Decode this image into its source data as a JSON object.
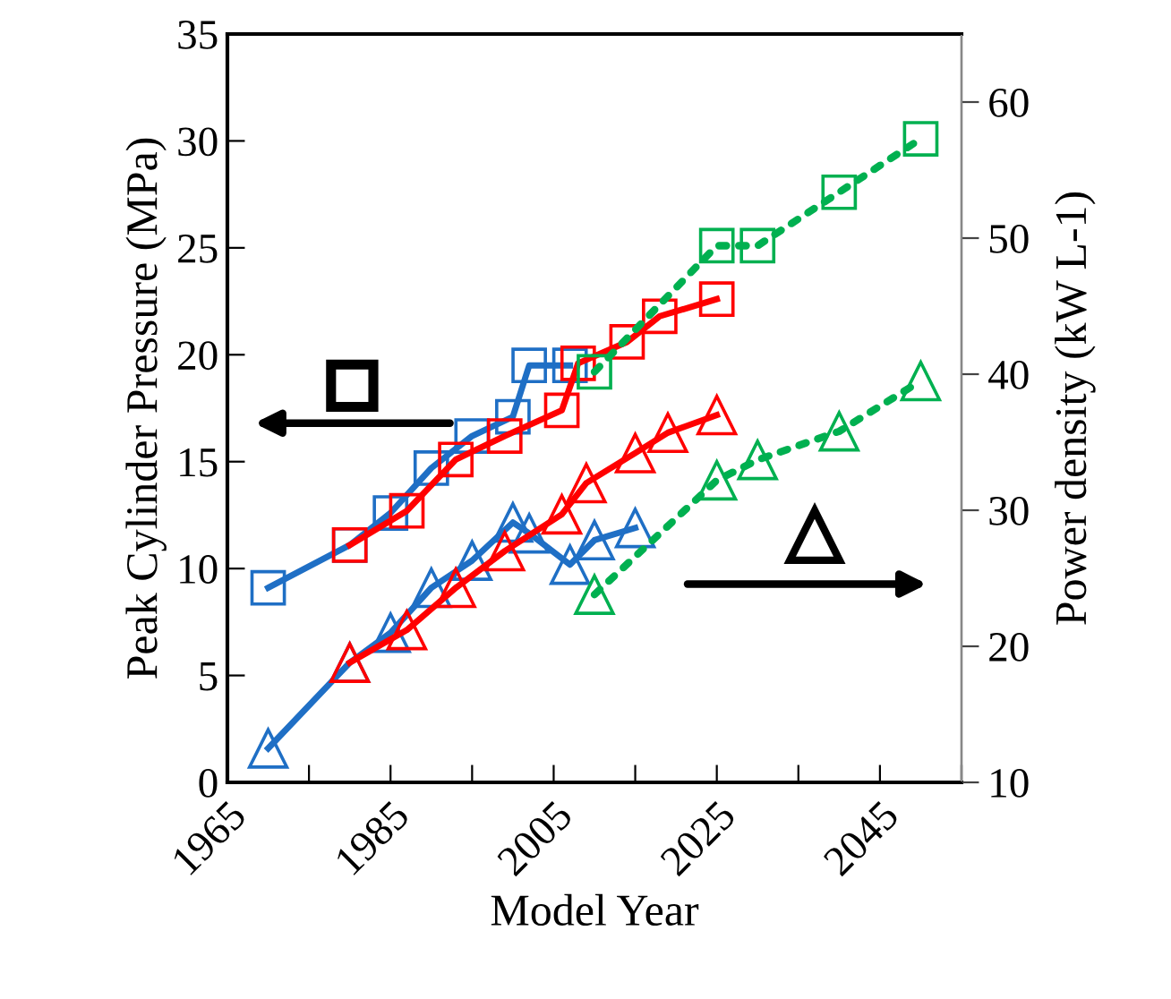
{
  "chart_data": {
    "type": "line",
    "xlabel": "Model Year",
    "ylabel": "Peak Cylinder Pressure (MPa)",
    "y2label": "Power density (kW L-1)",
    "xlim": [
      1965,
      2055
    ],
    "xticks": [
      1965,
      {
        "value": 1975,
        "label": null
      },
      1985,
      {
        "value": 1995,
        "label": null
      },
      2005,
      {
        "value": 2015,
        "label": null
      },
      2025,
      {
        "value": 2035,
        "label": null
      },
      2045,
      {
        "value": 2055,
        "label": null
      }
    ],
    "ylim": [
      0,
      35
    ],
    "yticks": [
      0,
      5,
      10,
      15,
      20,
      25,
      30,
      35
    ],
    "y2lim": [
      10,
      65
    ],
    "y2ticks": [
      10,
      20,
      30,
      40,
      50,
      60
    ],
    "grid": false,
    "series": [
      {
        "color": "#1f6fc5",
        "marker": "square",
        "line_style": "solid",
        "axis": "y",
        "x": [
          1970,
          1980,
          1985,
          1990,
          1995,
          2000,
          2002,
          2007
        ],
        "values": [
          9.1,
          11.1,
          12.6,
          14.7,
          16.2,
          17.1,
          19.5,
          19.5
        ]
      },
      {
        "color": "#ff0000",
        "marker": "square",
        "line_style": "solid",
        "axis": "y",
        "x": [
          1980,
          1987,
          1993,
          1999,
          2006,
          2008,
          2014,
          2018,
          2025
        ],
        "values": [
          11.1,
          12.7,
          15.1,
          16.2,
          17.4,
          19.6,
          20.6,
          21.8,
          22.6
        ]
      },
      {
        "color": "#00b050",
        "marker": "square",
        "line_style": "dotted",
        "axis": "y",
        "x": [
          2010,
          2025,
          2030,
          2040,
          2050
        ],
        "values": [
          19.2,
          25.1,
          25.1,
          27.6,
          30.1
        ]
      },
      {
        "color": "#1f6fc5",
        "marker": "triangle",
        "line_style": "solid",
        "axis": "y2",
        "x": [
          1970,
          1980,
          1985,
          1990,
          1995,
          2000,
          2002,
          2007,
          2010,
          2015
        ],
        "values": [
          12.5,
          18.8,
          21.0,
          24.3,
          26.3,
          29.1,
          28.3,
          26.0,
          27.8,
          28.7
        ]
      },
      {
        "color": "#ff0000",
        "marker": "triangle",
        "line_style": "solid",
        "axis": "y2",
        "x": [
          1980,
          1987,
          1993,
          1999,
          2006,
          2009,
          2015,
          2019,
          2025
        ],
        "values": [
          18.8,
          21.2,
          24.3,
          27.0,
          29.7,
          32.0,
          34.2,
          35.7,
          37.0
        ]
      },
      {
        "color": "#00b050",
        "marker": "triangle",
        "line_style": "dotted",
        "axis": "y2",
        "x": [
          2010,
          2025,
          2030,
          2040,
          2050
        ],
        "values": [
          23.8,
          32.2,
          33.7,
          35.8,
          39.5
        ]
      }
    ]
  }
}
